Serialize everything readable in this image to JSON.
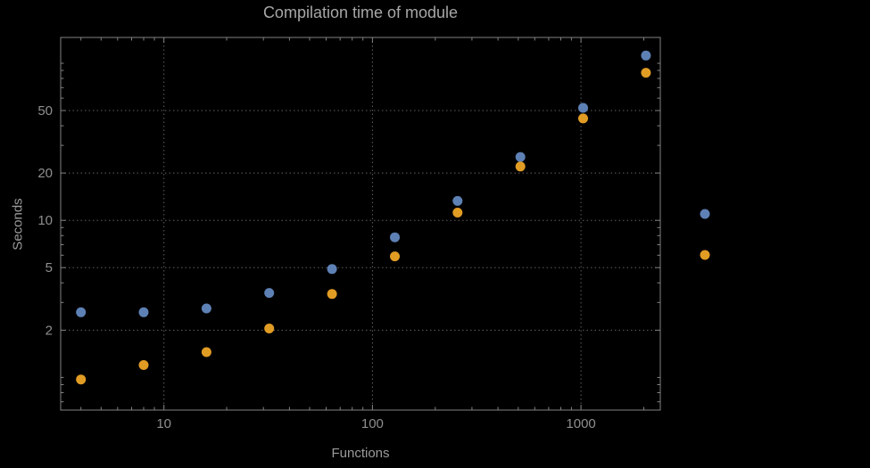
{
  "chart_data": {
    "type": "scatter",
    "title": "Compilation time of module",
    "xlabel": "Functions",
    "ylabel": "Seconds",
    "x_scale": "log",
    "y_scale": "log",
    "xlim": [
      3.2,
      2400
    ],
    "ylim": [
      0.62,
      146
    ],
    "grid": "dotted, at major ticks only",
    "x_ticks": [
      {
        "value": 10,
        "label": "10"
      },
      {
        "value": 100,
        "label": "100"
      },
      {
        "value": 1000,
        "label": "1000"
      }
    ],
    "y_ticks": [
      {
        "value": 2,
        "label": "2"
      },
      {
        "value": 5,
        "label": "5"
      },
      {
        "value": 10,
        "label": "10"
      },
      {
        "value": 20,
        "label": "20"
      },
      {
        "value": 50,
        "label": "50"
      }
    ],
    "x": [
      4,
      8,
      16,
      32,
      64,
      128,
      256,
      512,
      1024,
      2048
    ],
    "series": [
      {
        "name": "blue",
        "color": "#5e81b5",
        "values": [
          2.6,
          2.6,
          2.75,
          3.45,
          4.9,
          7.8,
          13.3,
          25.3,
          52,
          112
        ]
      },
      {
        "name": "orange",
        "color": "#e19c24",
        "values": [
          0.97,
          1.2,
          1.45,
          2.05,
          3.4,
          5.9,
          11.2,
          22,
          44.5,
          87
        ]
      }
    ],
    "legend": {
      "position": "right of plot",
      "labels": [
        "",
        ""
      ]
    }
  },
  "colors": {
    "background": "#000000",
    "frame": "#828282",
    "grid": "#5f5f5f",
    "tick_text": "#8f8f8f",
    "title_text": "#a7a7a7",
    "label_text": "#9b9b9b"
  }
}
